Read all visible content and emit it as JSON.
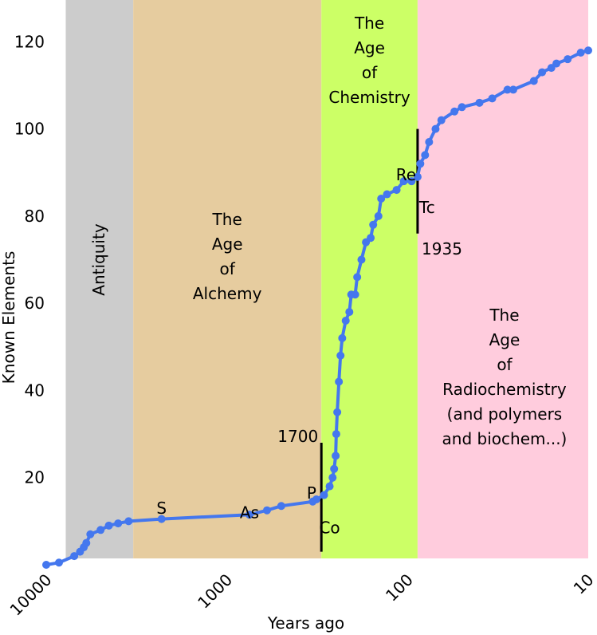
{
  "chart_data": {
    "type": "line",
    "xlabel": "Years ago",
    "ylabel": "Known Elements",
    "x_scale": "log-reversed",
    "xlim": [
      10000,
      10
    ],
    "ylim": [
      0,
      125
    ],
    "grid": false,
    "legend": "none",
    "x_ticks": [
      {
        "value": 10000,
        "label": "10000"
      },
      {
        "value": 1000,
        "label": "1000"
      },
      {
        "value": 100,
        "label": "100"
      },
      {
        "value": 10,
        "label": "10"
      }
    ],
    "y_ticks": [
      {
        "value": 20,
        "label": "20"
      },
      {
        "value": 40,
        "label": "40"
      },
      {
        "value": 60,
        "label": "60"
      },
      {
        "value": 80,
        "label": "80"
      },
      {
        "value": 100,
        "label": "100"
      },
      {
        "value": 120,
        "label": "120"
      }
    ],
    "eras": [
      {
        "key": "antiquity",
        "lines": [
          "Antiquity"
        ],
        "from": 7800,
        "to": 3300,
        "color": "#cccccc",
        "vertical": true,
        "label_y": 70
      },
      {
        "key": "alchemy",
        "lines": [
          "The",
          "Age",
          "of",
          "Alchemy"
        ],
        "from": 3300,
        "to": 300,
        "color": "#e6cc9f",
        "vertical": false,
        "label_y": 78
      },
      {
        "key": "chemistry",
        "lines": [
          "The",
          "Age",
          "of",
          "Chemistry"
        ],
        "from": 300,
        "to": 88,
        "color": "#ccff66",
        "vertical": false,
        "label_y": 123
      },
      {
        "key": "radiochemistry",
        "lines": [
          "The",
          "Age",
          "of",
          "Radiochemistry",
          "(and polymers",
          "and biochem...)"
        ],
        "from": 88,
        "to": 10,
        "color": "#ffccdd",
        "vertical": false,
        "label_y": 56
      }
    ],
    "series": [
      {
        "color": "#4477ee",
        "points": [
          [
            10000,
            0
          ],
          [
            8500,
            0.5
          ],
          [
            7000,
            2
          ],
          [
            6500,
            3
          ],
          [
            6200,
            4
          ],
          [
            6000,
            5
          ],
          [
            5700,
            7
          ],
          [
            5000,
            8
          ],
          [
            4500,
            9
          ],
          [
            4000,
            9.5
          ],
          [
            3500,
            10
          ],
          [
            2300,
            10.5
          ],
          [
            750,
            11.5
          ],
          [
            600,
            12.5
          ],
          [
            500,
            13.5
          ],
          [
            335,
            14.5
          ],
          [
            320,
            15
          ],
          [
            290,
            16
          ],
          [
            270,
            18
          ],
          [
            260,
            20
          ],
          [
            255,
            22
          ],
          [
            250,
            25
          ],
          [
            248,
            30
          ],
          [
            245,
            35
          ],
          [
            240,
            42
          ],
          [
            235,
            48
          ],
          [
            230,
            52
          ],
          [
            220,
            56
          ],
          [
            210,
            58
          ],
          [
            205,
            62
          ],
          [
            195,
            62
          ],
          [
            190,
            66
          ],
          [
            180,
            70
          ],
          [
            170,
            74
          ],
          [
            160,
            75
          ],
          [
            155,
            78
          ],
          [
            145,
            80
          ],
          [
            140,
            84
          ],
          [
            130,
            85
          ],
          [
            115,
            86
          ],
          [
            105,
            88
          ],
          [
            95,
            88
          ],
          [
            88,
            89
          ],
          [
            85,
            92
          ],
          [
            80,
            94
          ],
          [
            76,
            97
          ],
          [
            70,
            100
          ],
          [
            65,
            102
          ],
          [
            55,
            104
          ],
          [
            50,
            105
          ],
          [
            40,
            106
          ],
          [
            34,
            107
          ],
          [
            28,
            109
          ],
          [
            26,
            109
          ],
          [
            20,
            111
          ],
          [
            18,
            113
          ],
          [
            16,
            114
          ],
          [
            15,
            115
          ],
          [
            13,
            116
          ],
          [
            11,
            117.5
          ],
          [
            10,
            118
          ]
        ]
      }
    ],
    "markers": [
      {
        "year": 300,
        "y_from": 3,
        "y_to": 28,
        "label": "1700",
        "label_x": 300,
        "label_y": 29.5,
        "anchor": "end"
      },
      {
        "year": 88,
        "y_from": 76,
        "y_to": 100,
        "label": "1935",
        "label_x": 87,
        "label_y": 72.5,
        "anchor": "start"
      }
    ],
    "annotations": [
      {
        "text": "S",
        "x": 2300,
        "y": 13
      },
      {
        "text": "As",
        "x": 750,
        "y": 12
      },
      {
        "text": "P",
        "x": 340,
        "y": 16.5
      },
      {
        "text": "Co",
        "x": 270,
        "y": 8.5
      },
      {
        "text": "Re",
        "x": 102,
        "y": 89.5
      },
      {
        "text": "Tc",
        "x": 78,
        "y": 82
      }
    ]
  }
}
